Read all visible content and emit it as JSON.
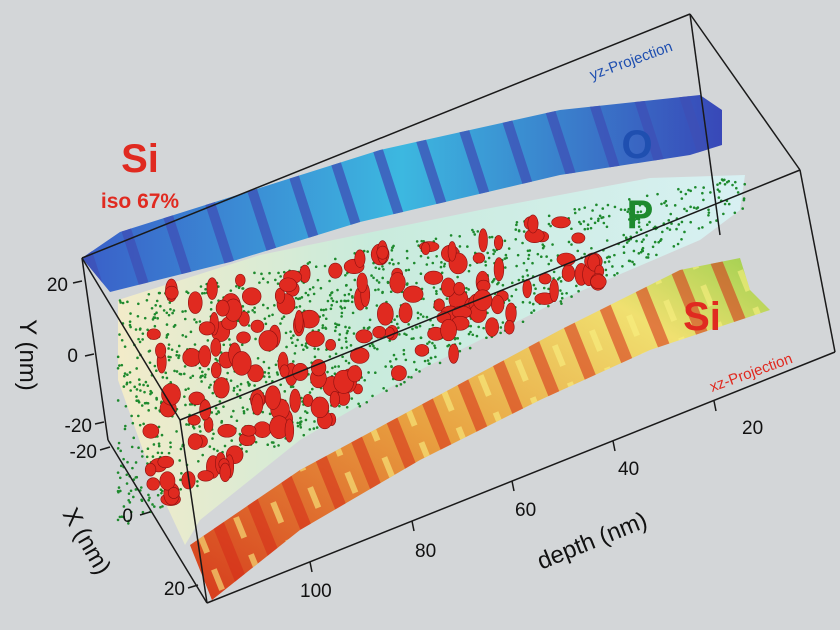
{
  "labels": {
    "si_title": "Si",
    "si_iso": "iso 67%",
    "o_label": "O",
    "p_label": "P",
    "si_label": "Si",
    "yz_projection": "yz-Projection",
    "xz_projection": "xz-Projection"
  },
  "axes": {
    "y": {
      "label": "Y (nm)",
      "ticks": [
        "20",
        "0",
        "-20"
      ]
    },
    "x": {
      "label": "X (nm)",
      "ticks": [
        "-20",
        "0",
        "20"
      ]
    },
    "depth": {
      "label": "depth (nm)",
      "ticks": [
        "20",
        "40",
        "60",
        "80",
        "100"
      ]
    }
  },
  "colors": {
    "background": "#d3d6d8",
    "oxygen": "#2f5fc4",
    "phosphorus": "#1e8a2e",
    "silicon": "#e02a20",
    "yz_text": "#1f4fb0",
    "xz_text": "#e02a20"
  }
}
